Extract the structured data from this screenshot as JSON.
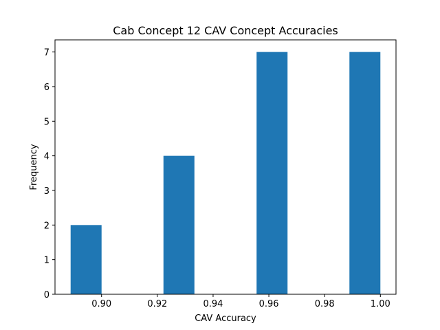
{
  "chart_data": {
    "type": "bar",
    "title": "Cab Concept 12 CAV Concept Accuracies",
    "xlabel": "CAV Accuracy",
    "ylabel": "Frequency",
    "bins": [
      {
        "x0": 0.8889,
        "x1": 0.9,
        "count": 2
      },
      {
        "x0": 0.9,
        "x1": 0.9111,
        "count": 0
      },
      {
        "x0": 0.9111,
        "x1": 0.9222,
        "count": 0
      },
      {
        "x0": 0.9222,
        "x1": 0.9333,
        "count": 4
      },
      {
        "x0": 0.9333,
        "x1": 0.9444,
        "count": 0
      },
      {
        "x0": 0.9444,
        "x1": 0.9556,
        "count": 0
      },
      {
        "x0": 0.9556,
        "x1": 0.9667,
        "count": 7
      },
      {
        "x0": 0.9667,
        "x1": 0.9778,
        "count": 0
      },
      {
        "x0": 0.9778,
        "x1": 0.9889,
        "count": 0
      },
      {
        "x0": 0.9889,
        "x1": 1.0,
        "count": 7
      }
    ],
    "xlim": [
      0.8833,
      1.0056
    ],
    "ylim": [
      0,
      7.35
    ],
    "xticks": [
      0.9,
      0.92,
      0.94,
      0.96,
      0.98,
      1.0
    ],
    "xtick_labels": [
      "0.90",
      "0.92",
      "0.94",
      "0.96",
      "0.98",
      "1.00"
    ],
    "yticks": [
      0,
      1,
      2,
      3,
      4,
      5,
      6,
      7
    ],
    "ytick_labels": [
      "0",
      "1",
      "2",
      "3",
      "4",
      "5",
      "6",
      "7"
    ],
    "bar_color": "#1f77b4",
    "grid": false,
    "legend": "none"
  }
}
